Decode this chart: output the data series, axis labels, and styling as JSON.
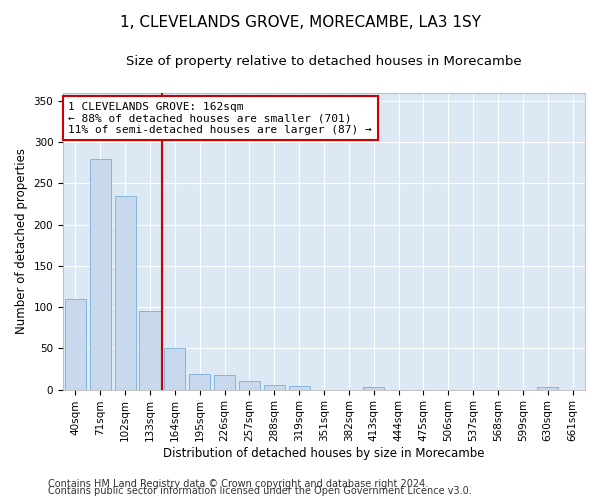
{
  "title": "1, CLEVELANDS GROVE, MORECAMBE, LA3 1SY",
  "subtitle": "Size of property relative to detached houses in Morecambe",
  "xlabel": "Distribution of detached houses by size in Morecambe",
  "ylabel": "Number of detached properties",
  "categories": [
    "40sqm",
    "71sqm",
    "102sqm",
    "133sqm",
    "164sqm",
    "195sqm",
    "226sqm",
    "257sqm",
    "288sqm",
    "319sqm",
    "351sqm",
    "382sqm",
    "413sqm",
    "444sqm",
    "475sqm",
    "506sqm",
    "537sqm",
    "568sqm",
    "599sqm",
    "630sqm",
    "661sqm"
  ],
  "values": [
    110,
    280,
    235,
    95,
    50,
    19,
    18,
    11,
    5,
    4,
    0,
    0,
    3,
    0,
    0,
    0,
    0,
    0,
    0,
    3,
    0
  ],
  "bar_color": "#c8d9ee",
  "bar_edge_color": "#7aaed6",
  "vline_color": "#cc0000",
  "annotation_text": "1 CLEVELANDS GROVE: 162sqm\n← 88% of detached houses are smaller (701)\n11% of semi-detached houses are larger (87) →",
  "annotation_box_color": "#ffffff",
  "annotation_box_edge": "#cc0000",
  "ylim": [
    0,
    360
  ],
  "yticks": [
    0,
    50,
    100,
    150,
    200,
    250,
    300,
    350
  ],
  "footer_line1": "Contains HM Land Registry data © Crown copyright and database right 2024.",
  "footer_line2": "Contains public sector information licensed under the Open Government Licence v3.0.",
  "background_color": "#dce9f5",
  "title_fontsize": 11,
  "subtitle_fontsize": 9.5,
  "axis_label_fontsize": 8.5,
  "tick_fontsize": 7.5,
  "annotation_fontsize": 8,
  "footer_fontsize": 7
}
